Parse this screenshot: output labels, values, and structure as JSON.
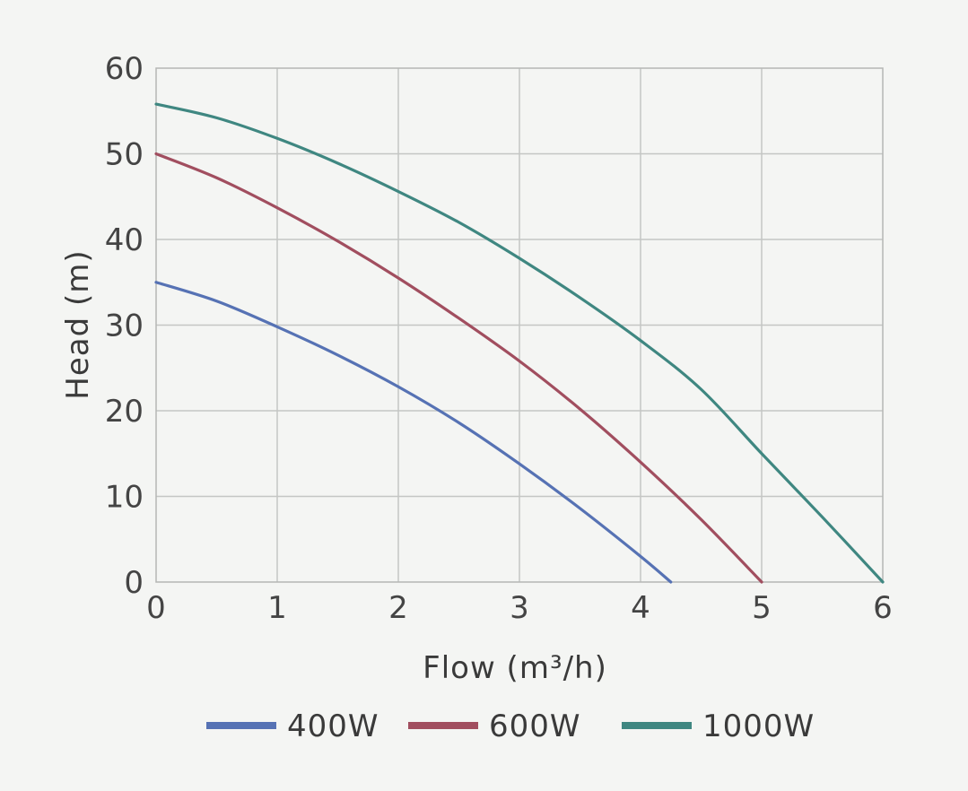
{
  "chart_data": {
    "type": "line",
    "xlabel": "Flow (m³/h)",
    "ylabel": "Head (m)",
    "xlim": [
      0,
      6
    ],
    "ylim": [
      0,
      60
    ],
    "xticks": [
      "0",
      "1",
      "2",
      "3",
      "4",
      "5",
      "6"
    ],
    "yticks": [
      "0",
      "10",
      "20",
      "30",
      "40",
      "50",
      "60"
    ],
    "grid": true,
    "legend": "bottom",
    "series": [
      {
        "name": "400W",
        "color": "#5672b4",
        "x": [
          0,
          0.5,
          1,
          1.5,
          2,
          2.5,
          3,
          3.5,
          4,
          4.25
        ],
        "y": [
          35,
          32.8,
          29.8,
          26.5,
          22.8,
          18.6,
          13.8,
          8.6,
          3,
          0
        ]
      },
      {
        "name": "600W",
        "color": "#a14e5f",
        "x": [
          0,
          0.5,
          1,
          1.5,
          2,
          2.5,
          3,
          3.5,
          4,
          4.5,
          5
        ],
        "y": [
          50,
          47.2,
          43.7,
          39.8,
          35.5,
          30.8,
          25.8,
          20.2,
          14,
          7.3,
          0
        ]
      },
      {
        "name": "1000W",
        "color": "#3f8781",
        "x": [
          0,
          0.5,
          1,
          1.5,
          2,
          2.5,
          3,
          3.5,
          4,
          4.5,
          5,
          5.5,
          6
        ],
        "y": [
          55.8,
          54.2,
          51.8,
          48.9,
          45.6,
          42,
          37.8,
          33.2,
          28.2,
          22.5,
          15,
          7.6,
          0
        ]
      }
    ]
  }
}
